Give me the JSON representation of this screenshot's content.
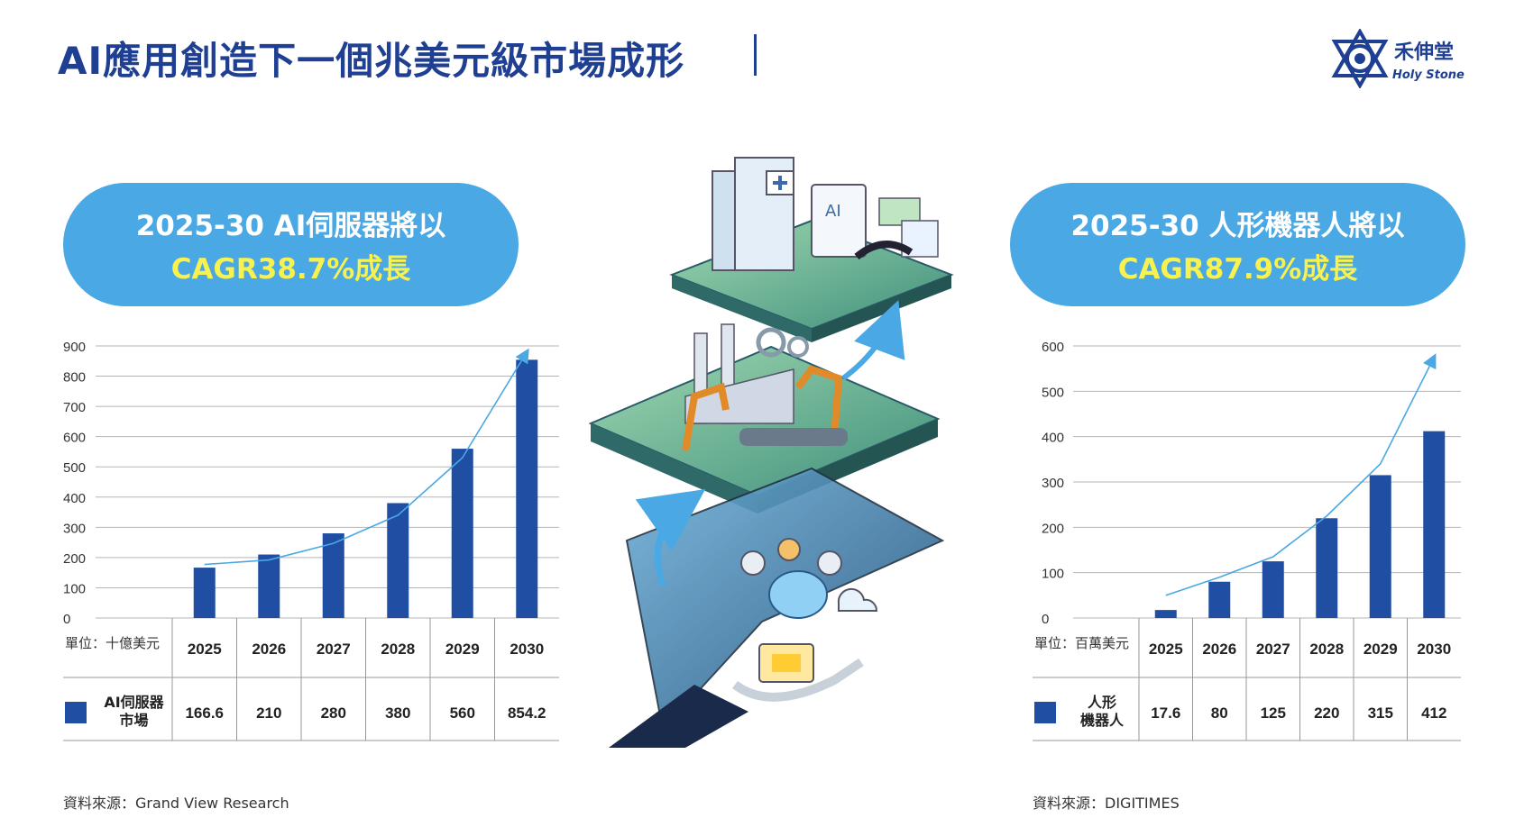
{
  "title": "AI應用創造下一個兆美元級市場成形",
  "logo": {
    "cn": "禾伸堂",
    "en": "Holy Stone"
  },
  "left_panel": {
    "pill_line1": "2025-30 AI伺服器將以",
    "pill_line2": "CAGR38.7%成長",
    "unit_label": "單位：十億美元",
    "series_label_line1": "AI伺服器",
    "series_label_line2": "市場",
    "source": "資料來源：Grand View Research"
  },
  "right_panel": {
    "pill_line1": "2025-30 人形機器人將以",
    "pill_line2": "CAGR87.9%成長",
    "unit_label": "單位：百萬美元",
    "series_label_line1": "人形",
    "series_label_line2": "機器人",
    "source": "資料來源：DIGITIMES"
  },
  "colors": {
    "title": "#1f3f93",
    "bar": "#1f4ea3",
    "pill": "#4aa8e4",
    "highlight": "#f7f250",
    "trend": "#4aa8e4"
  },
  "chart_data": [
    {
      "type": "bar",
      "categories": [
        "2025",
        "2026",
        "2027",
        "2028",
        "2029",
        "2030"
      ],
      "values": [
        166.6,
        210,
        280,
        380,
        560,
        854.2
      ],
      "ylim": [
        0,
        900
      ],
      "yticks": [
        0,
        100,
        200,
        300,
        400,
        500,
        600,
        700,
        800,
        900
      ],
      "grid": true,
      "trend_arrow": [
        177,
        192,
        247,
        340,
        530,
        880
      ]
    },
    {
      "type": "bar",
      "categories": [
        "2025",
        "2026",
        "2027",
        "2028",
        "2029",
        "2030"
      ],
      "values": [
        17.6,
        80,
        125,
        220,
        315,
        412
      ],
      "ylim": [
        0,
        600
      ],
      "yticks": [
        0,
        100,
        200,
        300,
        400,
        500,
        600
      ],
      "grid": true,
      "trend_arrow": [
        50,
        90,
        135,
        225,
        340,
        575
      ]
    }
  ]
}
